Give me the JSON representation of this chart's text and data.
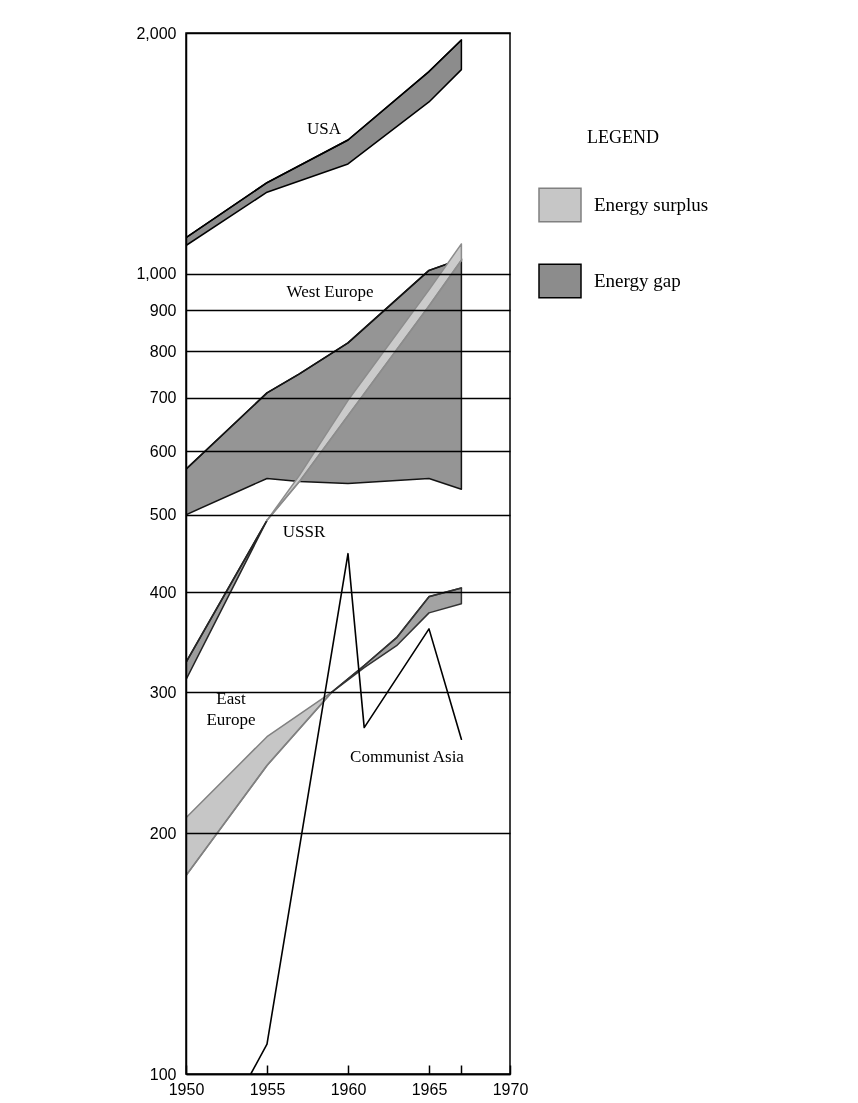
{
  "chart_data": {
    "type": "line",
    "legend_title": "LEGEND",
    "log": "y",
    "grid": "y",
    "legend": "right",
    "xlim": [
      1950,
      1970
    ],
    "xticks": [
      1950,
      1955,
      1960,
      1965,
      {
        "value": 1967,
        "label": null
      },
      1970
    ],
    "ylim": [
      100,
      2000
    ],
    "yticks": [
      100,
      200,
      300,
      400,
      500,
      600,
      700,
      800,
      900,
      {
        "value": 1000,
        "label": "1,000"
      },
      {
        "value": 2000,
        "label": "2,000"
      }
    ],
    "annotations": [
      "USA",
      "West Europe",
      "USSR",
      "East\nEurope",
      "Communist Asia"
    ],
    "series": [
      {
        "name": "Energy surplus",
        "color": "#808080",
        "x": [
          1950,
          1955,
          1959
        ],
        "values": [
          177,
          243,
          300
        ],
        "lower": [
          177,
          243,
          300
        ],
        "upper": [
          209,
          264,
          300
        ]
      },
      {
        "name": "Energy gap",
        "color": "#000000",
        "x": [
          1950,
          1955,
          1960,
          1965,
          1967
        ],
        "values": [
          1110,
          1300,
          1470,
          1790,
          1960
        ],
        "lower": [
          1085,
          1265,
          1372,
          1640,
          1800
        ],
        "upper": [
          1110,
          1300,
          1470,
          1790,
          1960
        ]
      },
      {
        "color": "#141414",
        "x": [
          1950,
          1955,
          1957,
          1960,
          1965,
          1967
        ],
        "values": [
          570,
          710,
          750,
          820,
          1010,
          1044
        ],
        "lower": [
          500,
          555,
          550,
          547,
          555,
          538
        ],
        "upper": [
          570,
          710,
          750,
          820,
          1010,
          1044
        ]
      },
      {
        "color": "#262626",
        "x": [
          1950,
          1955
        ],
        "values": [
          327,
          492
        ],
        "lower": [
          311,
          492
        ],
        "upper": [
          327,
          492
        ]
      },
      {
        "color": "#8c8c8c",
        "x": [
          1955,
          1957,
          1960,
          1965,
          1967
        ],
        "values": [
          492,
          550,
          665,
          912,
          1040
        ],
        "lower": [
          492,
          550,
          665,
          912,
          1040
        ],
        "upper": [
          492,
          560,
          695,
          955,
          1090
        ]
      },
      {
        "color": "#333333",
        "x": [
          1959,
          1961,
          1963,
          1965,
          1967
        ],
        "values": [
          300,
          324,
          351,
          395,
          405
        ],
        "lower": [
          300,
          322,
          343,
          377,
          387
        ],
        "upper": [
          300,
          324,
          351,
          395,
          405
        ]
      },
      {
        "color": "#000000",
        "x": [
          1954,
          1955,
          1960,
          1961,
          1965,
          1967
        ],
        "values": [
          100,
          109,
          447,
          271,
          360,
          262
        ]
      }
    ]
  }
}
